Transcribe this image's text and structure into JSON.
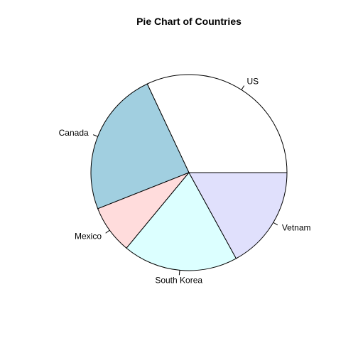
{
  "chart_data": {
    "type": "pie",
    "title": "Pie Chart of Countries",
    "start_angle_deg": 0,
    "direction": "counterclockwise",
    "slices": [
      {
        "label": "US",
        "value": 32,
        "color": "#ffffff"
      },
      {
        "label": "Canada",
        "value": 24,
        "color": "#a1cfe0"
      },
      {
        "label": "Mexico",
        "value": 8,
        "color": "#ffdcdc"
      },
      {
        "label": "South Korea",
        "value": 19,
        "color": "#dcffff"
      },
      {
        "label": "Vetnam",
        "value": 17,
        "color": "#e0e0fc"
      }
    ]
  }
}
